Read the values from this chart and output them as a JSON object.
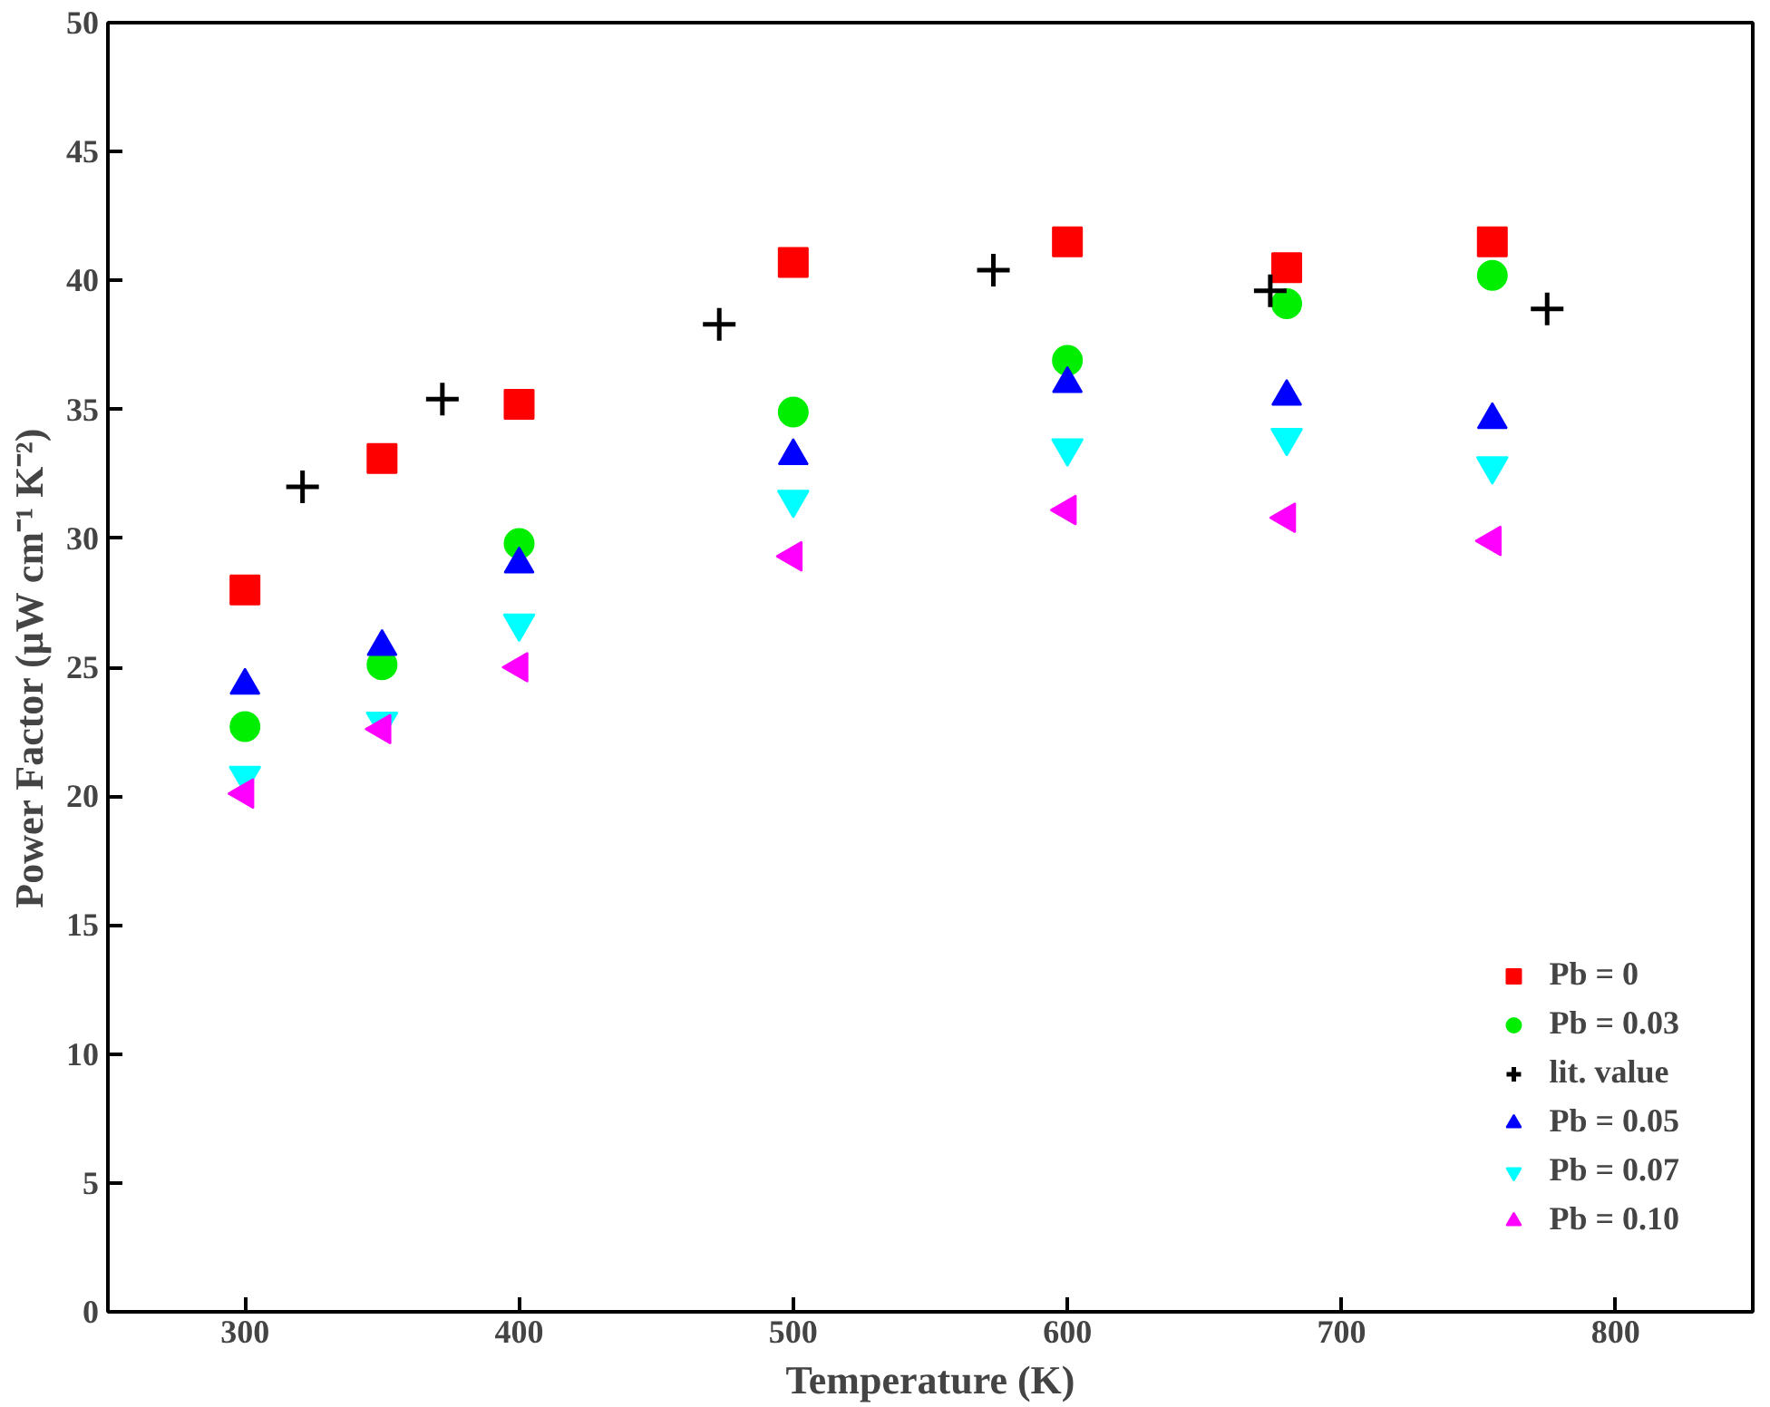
{
  "chart_data": {
    "type": "scatter",
    "xlabel": "Temperature (K)",
    "ylabel": "Power Factor (μW cm⁻¹ K⁻²)",
    "xlim": [
      250,
      850
    ],
    "xticks": [
      300,
      400,
      500,
      600,
      700,
      800
    ],
    "ylim": [
      0,
      50
    ],
    "yticks": [
      0,
      5,
      10,
      15,
      20,
      25,
      30,
      35,
      40,
      45,
      50
    ],
    "grid": false,
    "legend": "bottom right",
    "series": [
      {
        "name": "Pb = 0",
        "color": "#ff0000",
        "marker": "square",
        "x": [
          300,
          350,
          400,
          500,
          600,
          680,
          755
        ],
        "values": [
          28.0,
          33.1,
          35.2,
          40.7,
          41.5,
          40.5,
          41.5
        ]
      },
      {
        "name": "Pb = 0.03",
        "color": "#00ee00",
        "marker": "circle",
        "x": [
          300,
          350,
          400,
          500,
          600,
          680,
          755
        ],
        "values": [
          22.7,
          25.1,
          29.8,
          34.9,
          36.9,
          39.1,
          40.2
        ]
      },
      {
        "name": "lit. value",
        "color": "#000000",
        "marker": "cross",
        "x": [
          321,
          372,
          473,
          573,
          674,
          775
        ],
        "values": [
          32.0,
          35.4,
          38.3,
          40.4,
          39.6,
          38.9
        ]
      },
      {
        "name": "Pb = 0.05",
        "color": "#0000ff",
        "marker": "triangle",
        "x": [
          300,
          350,
          400,
          500,
          600,
          680,
          755
        ],
        "values": [
          24.3,
          25.8,
          29.0,
          33.2,
          36.0,
          35.5,
          34.6
        ]
      },
      {
        "name": "Pb = 0.07",
        "color": "#00ffff",
        "marker": "triangle_down",
        "x": [
          300,
          350,
          400,
          500,
          600,
          680,
          755
        ],
        "values": [
          20.8,
          22.9,
          26.7,
          31.5,
          33.5,
          33.9,
          32.8
        ]
      },
      {
        "name": "Pb = 0.10",
        "color": "#ff00ff",
        "marker": "triangle_left",
        "x": [
          300,
          350,
          400,
          500,
          600,
          680,
          755
        ],
        "values": [
          20.1,
          22.6,
          25.0,
          29.3,
          31.1,
          30.8,
          29.9
        ]
      }
    ]
  }
}
